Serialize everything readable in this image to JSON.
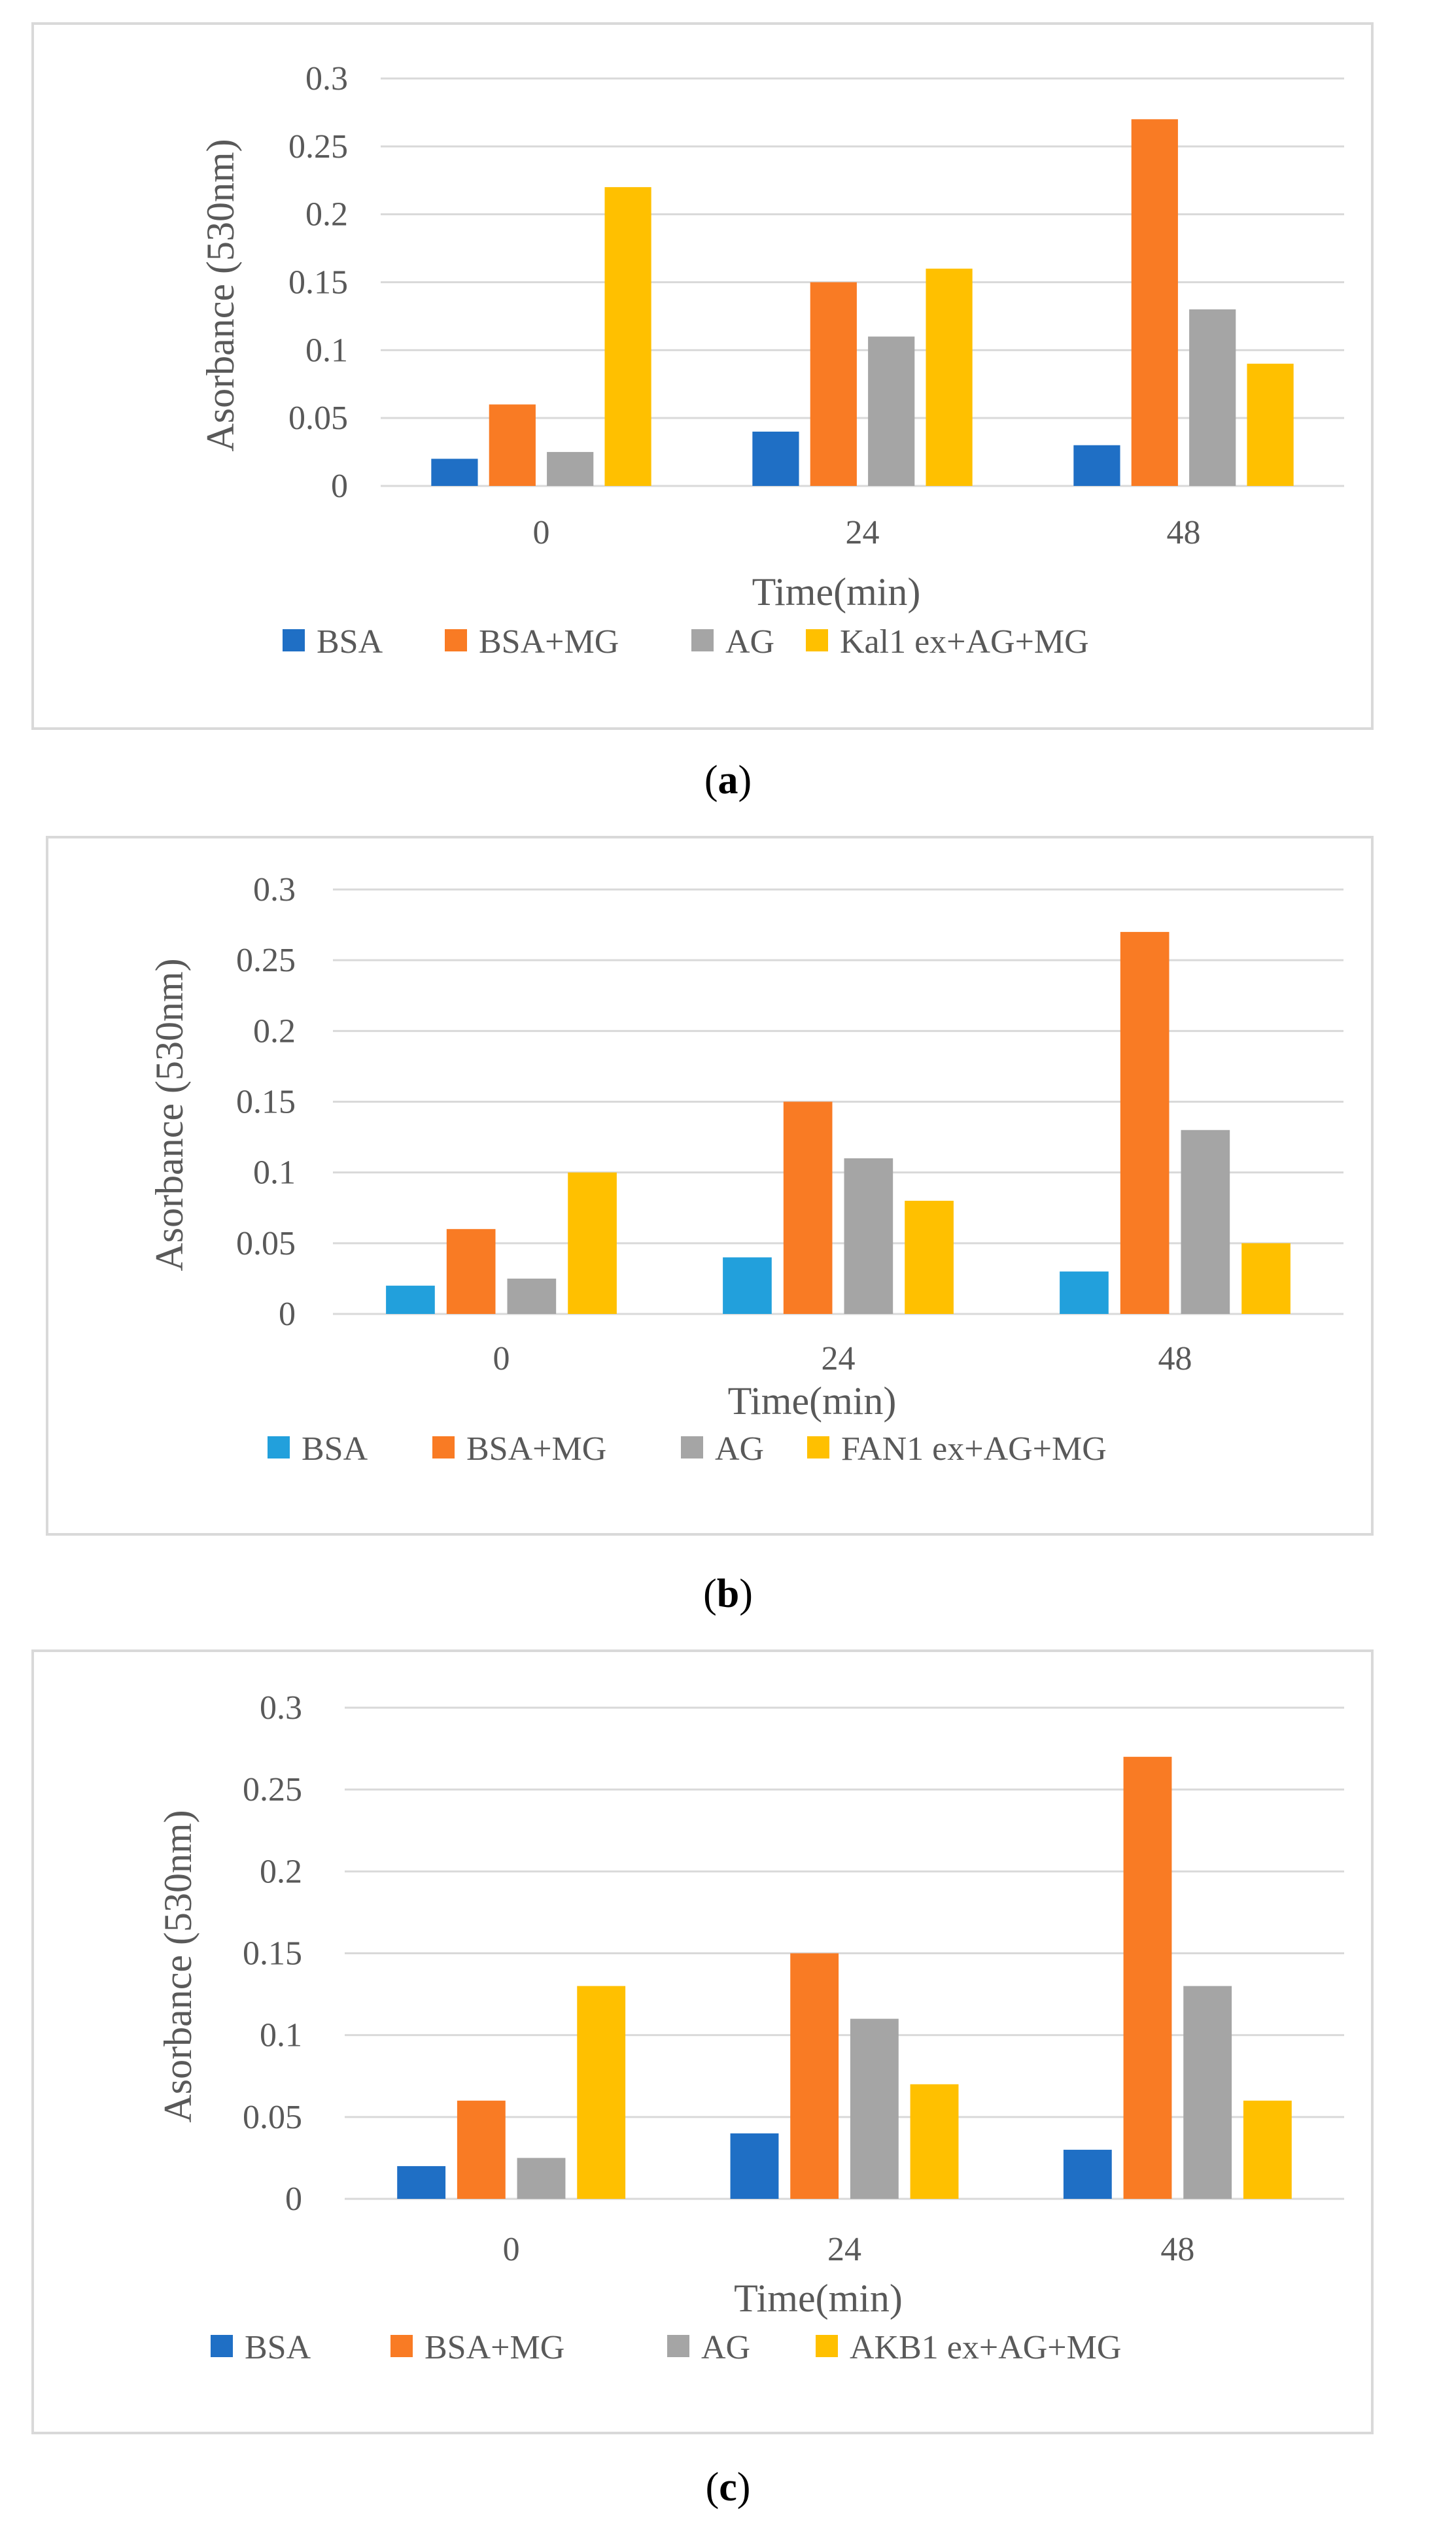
{
  "chart_data": [
    {
      "type": "bar",
      "panel_label": "a",
      "categories": [
        "0",
        "24",
        "48"
      ],
      "xlabel": "Time(min)",
      "ylabel": "Asorbance (530nm)",
      "ylim": [
        0,
        0.3
      ],
      "yticks": [
        "0",
        "0.05",
        "0.1",
        "0.15",
        "0.2",
        "0.25",
        "0.3"
      ],
      "grid": true,
      "legend_position": "bottom",
      "series": [
        {
          "name": "BSA",
          "color": "#1f6fc5",
          "values": [
            0.02,
            0.04,
            0.03
          ]
        },
        {
          "name": "BSA+MG",
          "color": "#f97b24",
          "values": [
            0.06,
            0.15,
            0.27
          ]
        },
        {
          "name": "AG",
          "color": "#a5a5a5",
          "values": [
            0.025,
            0.11,
            0.13
          ]
        },
        {
          "name": "Kal1 ex+AG+MG",
          "color": "#ffc000",
          "values": [
            0.22,
            0.16,
            0.09
          ]
        }
      ]
    },
    {
      "type": "bar",
      "panel_label": "b",
      "categories": [
        "0",
        "24",
        "48"
      ],
      "xlabel": "Time(min)",
      "ylabel": "Asorbance (530nm)",
      "ylim": [
        0,
        0.3
      ],
      "yticks": [
        "0",
        "0.05",
        "0.1",
        "0.15",
        "0.2",
        "0.25",
        "0.3"
      ],
      "grid": true,
      "legend_position": "bottom",
      "series": [
        {
          "name": "BSA",
          "color": "#22a0dc",
          "values": [
            0.02,
            0.04,
            0.03
          ]
        },
        {
          "name": "BSA+MG",
          "color": "#f97b24",
          "values": [
            0.06,
            0.15,
            0.27
          ]
        },
        {
          "name": "AG",
          "color": "#a5a5a5",
          "values": [
            0.025,
            0.11,
            0.13
          ]
        },
        {
          "name": "FAN1 ex+AG+MG",
          "color": "#ffc000",
          "values": [
            0.1,
            0.08,
            0.05
          ]
        }
      ]
    },
    {
      "type": "bar",
      "panel_label": "c",
      "categories": [
        "0",
        "24",
        "48"
      ],
      "xlabel": "Time(min)",
      "ylabel": "Asorbance (530nm)",
      "ylim": [
        0,
        0.3
      ],
      "yticks": [
        "0",
        "0.05",
        "0.1",
        "0.15",
        "0.2",
        "0.25",
        "0.3"
      ],
      "grid": true,
      "legend_position": "bottom",
      "series": [
        {
          "name": "BSA",
          "color": "#1f6fc5",
          "values": [
            0.02,
            0.04,
            0.03
          ]
        },
        {
          "name": "BSA+MG",
          "color": "#f97b24",
          "values": [
            0.06,
            0.15,
            0.27
          ]
        },
        {
          "name": "AG",
          "color": "#a5a5a5",
          "values": [
            0.025,
            0.11,
            0.13
          ]
        },
        {
          "name": "AKB1 ex+AG+MG",
          "color": "#ffc000",
          "values": [
            0.13,
            0.07,
            0.06
          ]
        }
      ]
    }
  ]
}
